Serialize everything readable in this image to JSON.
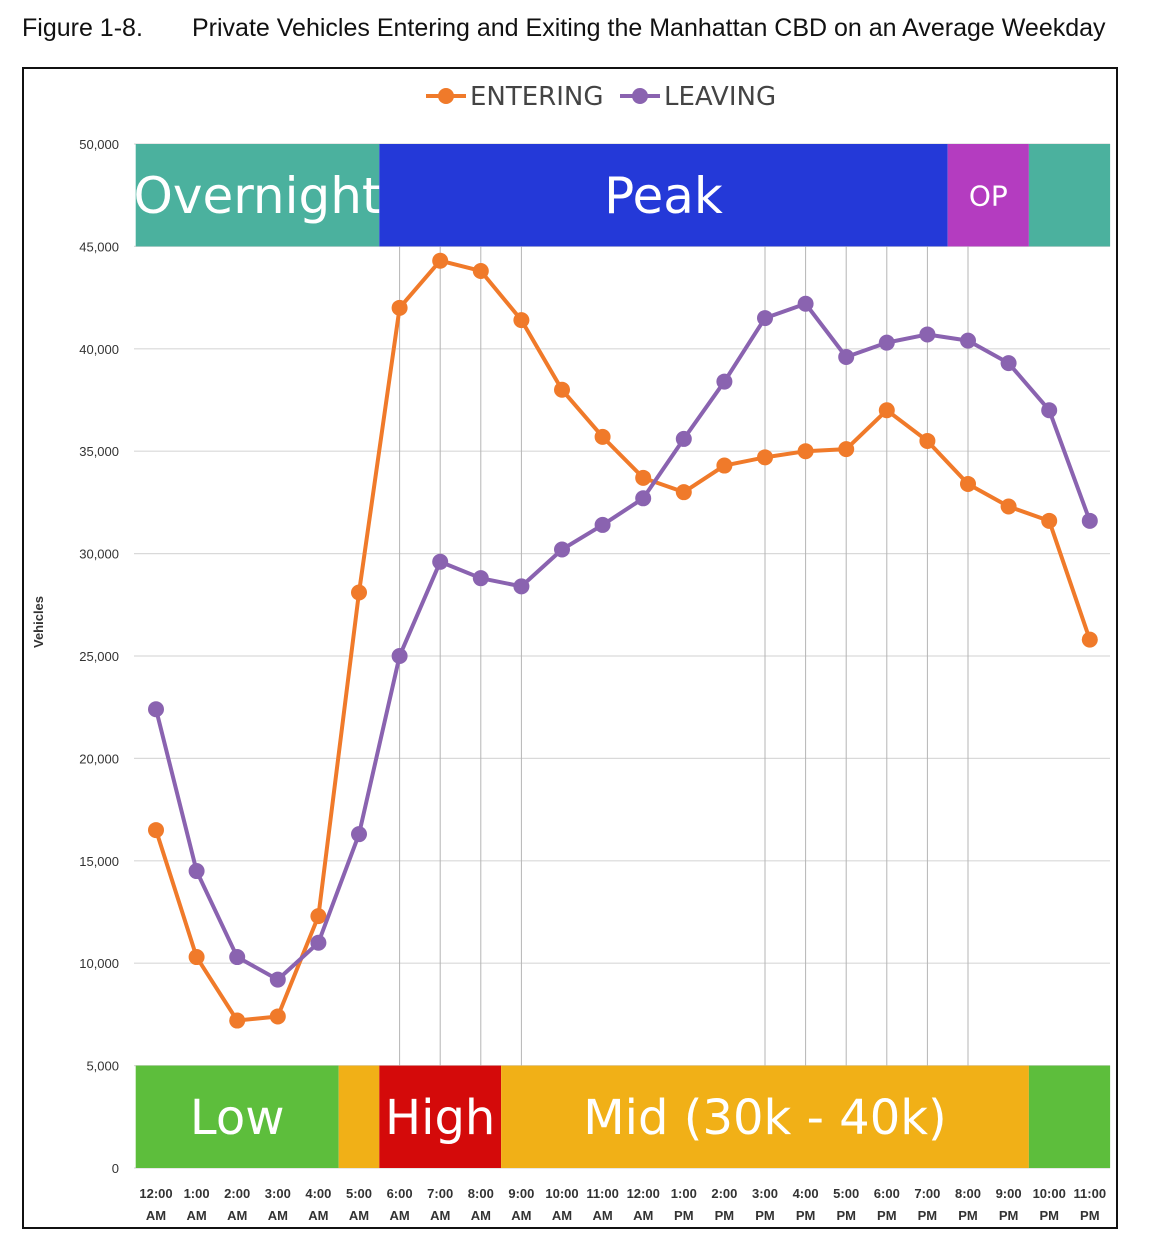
{
  "figure": {
    "number": "Figure 1-8.",
    "title": "Private Vehicles Entering and Exiting the Manhattan CBD on an Average Weekday"
  },
  "colors": {
    "entering": "#F07A2A",
    "leaving": "#8A63B0",
    "overnight": "#4BB19E",
    "peak": "#2439D8",
    "op": "#B43CC0",
    "low": "#5DBE3C",
    "mid": "#F1B017",
    "high": "#D40A0A",
    "grid": "#d9d9d9"
  },
  "chart_data": {
    "type": "line",
    "title": "Private Vehicles Entering and Exiting the Manhattan CBD on an Average Weekday",
    "xlabel": "",
    "ylabel": "Vehicles",
    "ylim": [
      0,
      50000
    ],
    "yticks": [
      0,
      5000,
      10000,
      15000,
      20000,
      25000,
      30000,
      35000,
      40000,
      45000,
      50000
    ],
    "ytick_labels": [
      "0",
      "5,000",
      "10,000",
      "15,000",
      "20,000",
      "25,000",
      "30,000",
      "35,000",
      "40,000",
      "45,000",
      "50,000"
    ],
    "categories": [
      [
        "12:00",
        "AM"
      ],
      [
        "1:00",
        "AM"
      ],
      [
        "2:00",
        "AM"
      ],
      [
        "3:00",
        "AM"
      ],
      [
        "4:00",
        "AM"
      ],
      [
        "5:00",
        "AM"
      ],
      [
        "6:00",
        "AM"
      ],
      [
        "7:00",
        "AM"
      ],
      [
        "8:00",
        "AM"
      ],
      [
        "9:00",
        "AM"
      ],
      [
        "10:00",
        "AM"
      ],
      [
        "11:00",
        "AM"
      ],
      [
        "12:00",
        "AM"
      ],
      [
        "1:00",
        "PM"
      ],
      [
        "2:00",
        "PM"
      ],
      [
        "3:00",
        "PM"
      ],
      [
        "4:00",
        "PM"
      ],
      [
        "5:00",
        "PM"
      ],
      [
        "6:00",
        "PM"
      ],
      [
        "7:00",
        "PM"
      ],
      [
        "8:00",
        "PM"
      ],
      [
        "9:00",
        "PM"
      ],
      [
        "10:00",
        "PM"
      ],
      [
        "11:00",
        "PM"
      ]
    ],
    "series": [
      {
        "name": "ENTERING",
        "values": [
          16500,
          10300,
          7200,
          7400,
          12300,
          28100,
          42000,
          44300,
          43800,
          41400,
          38000,
          35700,
          33700,
          33000,
          34300,
          34700,
          35000,
          35100,
          37000,
          35500,
          33400,
          32300,
          31600,
          25800
        ]
      },
      {
        "name": "LEAVING",
        "values": [
          22400,
          14500,
          10300,
          9200,
          11000,
          16300,
          25000,
          29600,
          28800,
          28400,
          30200,
          31400,
          32700,
          35600,
          38400,
          41500,
          42200,
          39600,
          40300,
          40700,
          40400,
          39300,
          37000,
          31600
        ]
      }
    ],
    "legend": [
      "ENTERING",
      "LEAVING"
    ],
    "legend_position": "top-center",
    "vertical_guides_at_hours": [
      6,
      7,
      8,
      9,
      15,
      16,
      17,
      18,
      19,
      20
    ],
    "top_bands": [
      {
        "label": "Overnight",
        "start_hour": 0,
        "end_hour": 6,
        "color_key": "overnight"
      },
      {
        "label": "Peak",
        "start_hour": 6,
        "end_hour": 20,
        "color_key": "peak"
      },
      {
        "label": "OP",
        "start_hour": 20,
        "end_hour": 22,
        "color_key": "op"
      },
      {
        "label": "",
        "start_hour": 22,
        "end_hour": 24,
        "color_key": "overnight"
      }
    ],
    "bottom_bands": [
      {
        "label": "Low",
        "start_hour": 0,
        "end_hour": 5,
        "color_key": "low"
      },
      {
        "label": "",
        "start_hour": 5,
        "end_hour": 6,
        "color_key": "mid"
      },
      {
        "label": "High",
        "start_hour": 6,
        "end_hour": 9,
        "color_key": "high"
      },
      {
        "label": "Mid (30k - 40k)",
        "start_hour": 9,
        "end_hour": 22,
        "color_key": "mid"
      },
      {
        "label": "",
        "start_hour": 22,
        "end_hour": 24,
        "color_key": "low"
      }
    ]
  }
}
